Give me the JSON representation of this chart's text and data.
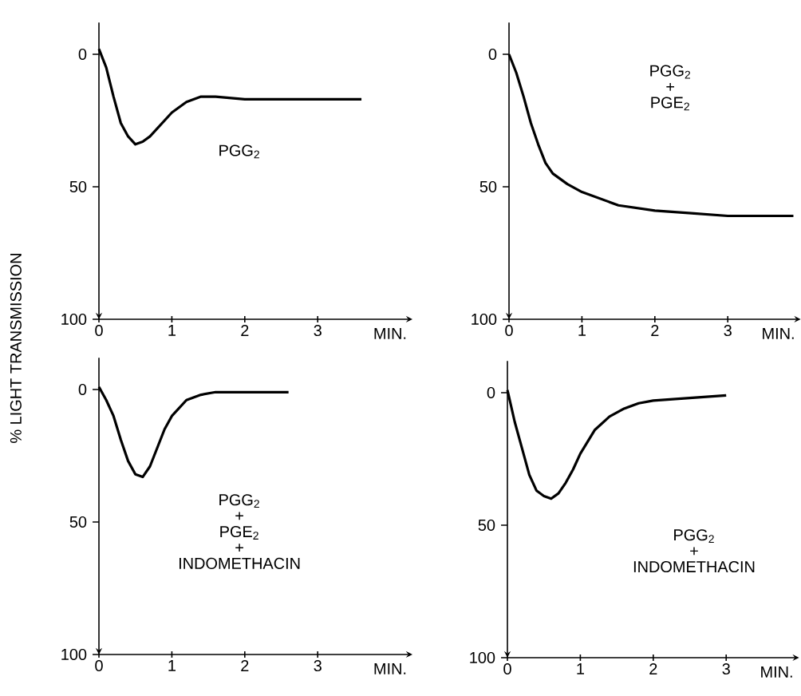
{
  "chart_data": [
    {
      "type": "line",
      "ylabel": "% LIGHT TRANSMISSION",
      "xlabel": "MIN.",
      "annotations": [
        "PGG$_{2}$"
      ],
      "color": "#000000",
      "x": [
        0,
        0.1,
        0.2,
        0.3,
        0.4,
        0.5,
        0.6,
        0.7,
        0.8,
        0.9,
        1.0,
        1.2,
        1.4,
        1.6,
        2.0,
        2.5,
        3.0,
        3.6
      ],
      "values": [
        -2,
        5,
        16,
        26,
        31,
        34,
        33,
        31,
        28,
        25,
        22,
        18,
        16,
        16,
        17,
        17,
        17,
        17
      ],
      "xlim": [
        0,
        4.3
      ],
      "ylim": [
        100,
        -12
      ],
      "xticks": [
        0,
        1,
        2,
        3
      ],
      "yticks": [
        0,
        50,
        100
      ]
    },
    {
      "type": "line",
      "xlabel": "MIN.",
      "annotations": [
        "PGG$_{2}$",
        "+",
        "PGE$_{2}$"
      ],
      "color": "#000000",
      "x": [
        0,
        0.1,
        0.2,
        0.3,
        0.4,
        0.5,
        0.6,
        0.8,
        1.0,
        1.2,
        1.5,
        2.0,
        2.5,
        3.0,
        3.9
      ],
      "values": [
        0,
        7,
        16,
        26,
        34,
        41,
        45,
        49,
        52,
        54,
        57,
        59,
        60,
        61,
        61
      ],
      "xlim": [
        0,
        4.0
      ],
      "ylim": [
        100,
        -12
      ],
      "xticks": [
        0,
        1,
        2,
        3
      ],
      "yticks": [
        0,
        50,
        100
      ]
    },
    {
      "type": "line",
      "xlabel": "MIN.",
      "annotations": [
        "PGG$_{2}$",
        "+",
        "PGE$_{2}$",
        "+",
        "INDOMETHACIN"
      ],
      "color": "#000000",
      "x": [
        0,
        0.1,
        0.2,
        0.3,
        0.4,
        0.5,
        0.6,
        0.7,
        0.8,
        0.9,
        1.0,
        1.2,
        1.4,
        1.6,
        2.0,
        2.6
      ],
      "values": [
        -1,
        4,
        10,
        19,
        27,
        32,
        33,
        29,
        22,
        15,
        10,
        4,
        2,
        1,
        1,
        1
      ],
      "xlim": [
        0,
        4.3
      ],
      "ylim": [
        100,
        -12
      ],
      "xticks": [
        0,
        1,
        2,
        3
      ],
      "yticks": [
        0,
        50,
        100
      ]
    },
    {
      "type": "line",
      "xlabel": "MIN.",
      "annotations": [
        "PGG$_{2}$",
        "+",
        "INDOMETHACIN"
      ],
      "color": "#000000",
      "x": [
        0,
        0.1,
        0.2,
        0.3,
        0.4,
        0.5,
        0.6,
        0.7,
        0.8,
        0.9,
        1.0,
        1.2,
        1.4,
        1.6,
        1.8,
        2.0,
        2.5,
        3.0
      ],
      "values": [
        -1,
        11,
        21,
        31,
        37,
        39,
        40,
        38,
        34,
        29,
        23,
        14,
        9,
        6,
        4,
        3,
        2,
        1
      ],
      "xlim": [
        0,
        4.0
      ],
      "ylim": [
        100,
        -12
      ],
      "xticks": [
        0,
        1,
        2,
        3
      ],
      "yticks": [
        0,
        50,
        100
      ]
    }
  ]
}
